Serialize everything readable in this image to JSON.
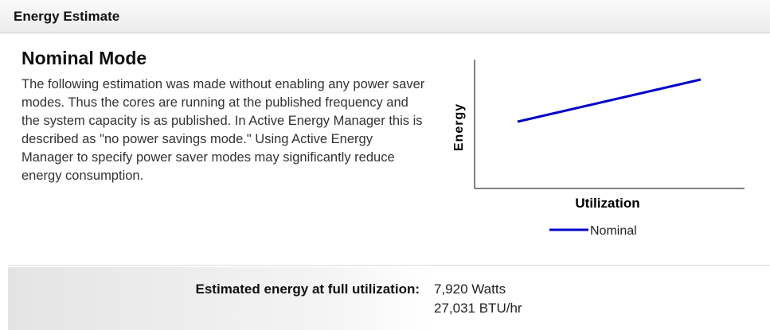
{
  "header": {
    "title": "Energy Estimate"
  },
  "section": {
    "heading": "Nominal Mode",
    "description": "The following estimation was made without enabling any power saver modes. Thus the cores are running at the published frequency and the system capacity is as published. In Active Energy Manager this is described as \"no power savings mode.\" Using Active Energy Manager to specify power saver modes may significantly reduce energy consumption."
  },
  "chart": {
    "y_label": "Energy",
    "x_label": "Utilization",
    "legend": [
      "Nominal"
    ]
  },
  "summary": {
    "label": "Estimated energy at full utilization:",
    "values": [
      "7,920 Watts",
      "27,031 BTU/hr"
    ]
  }
}
